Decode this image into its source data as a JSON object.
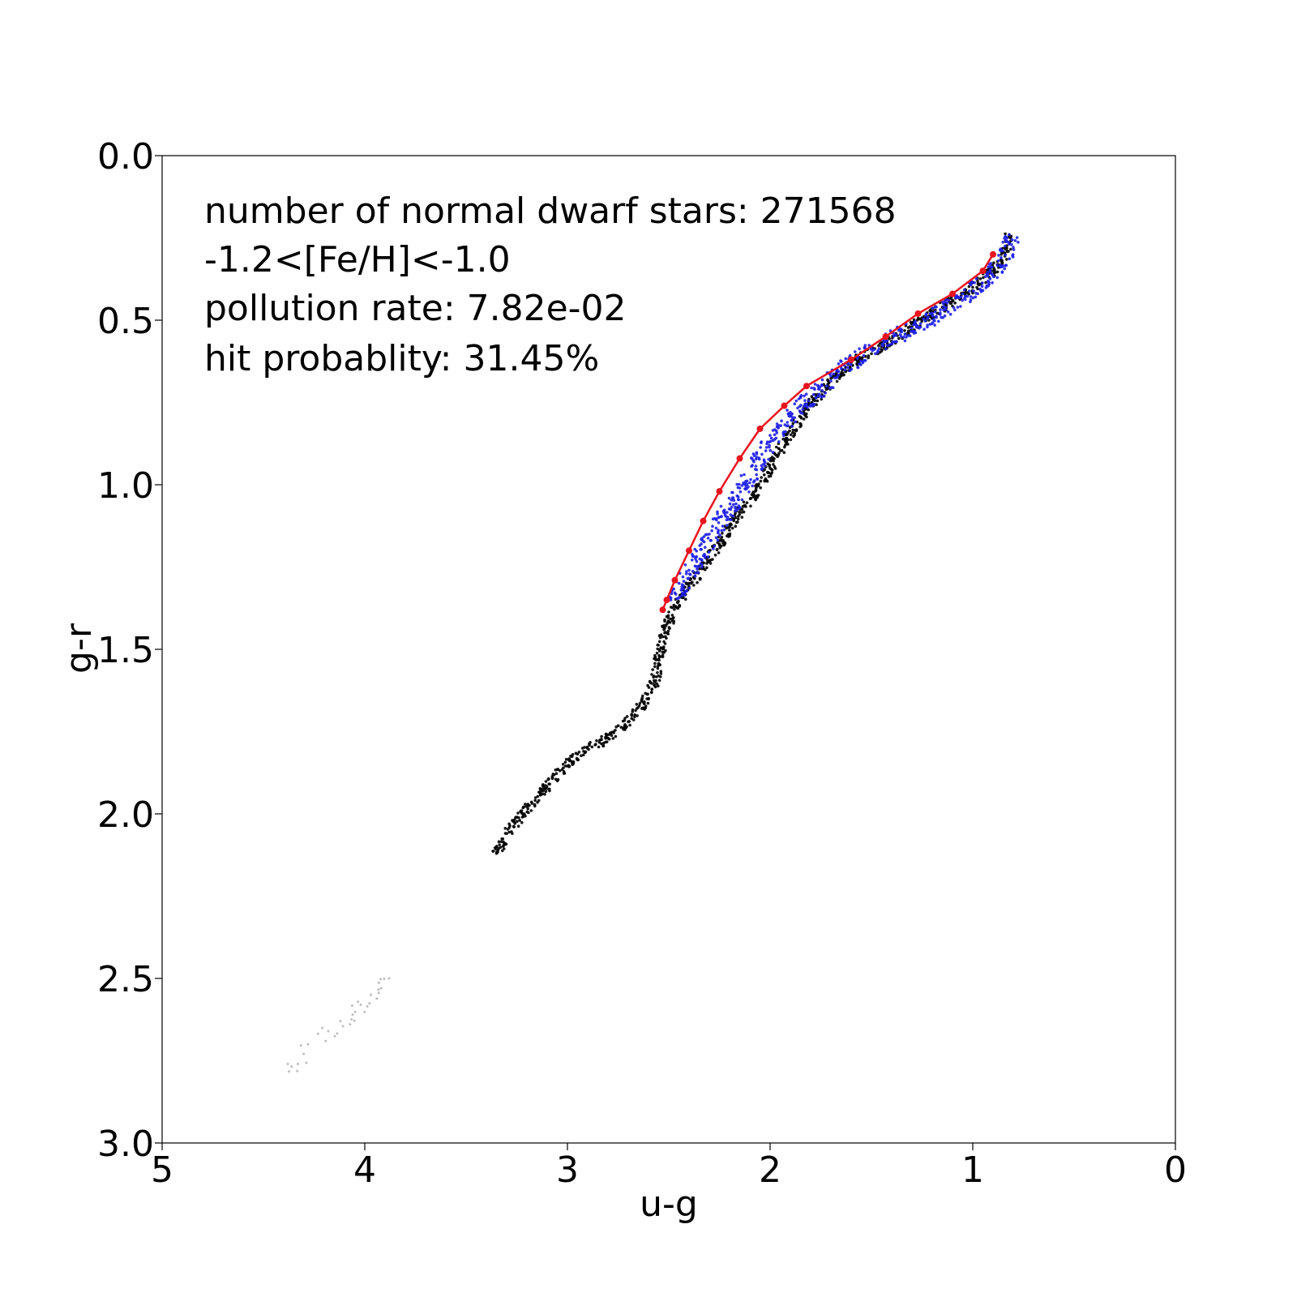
{
  "chart_data": {
    "type": "scatter",
    "xlabel": "u-g",
    "ylabel": "g-r",
    "xlim": [
      5,
      0
    ],
    "ylim": [
      3.0,
      0.0
    ],
    "x_inverted": true,
    "y_inverted": true,
    "xticks": [
      {
        "value": 5,
        "label": "5"
      },
      {
        "value": 4,
        "label": "4"
      },
      {
        "value": 3,
        "label": "3"
      },
      {
        "value": 2,
        "label": "2"
      },
      {
        "value": 1,
        "label": "1"
      },
      {
        "value": 0,
        "label": "0"
      }
    ],
    "yticks": [
      {
        "value": 0.0,
        "label": "0.0"
      },
      {
        "value": 0.5,
        "label": "0.5"
      },
      {
        "value": 1.0,
        "label": "1.0"
      },
      {
        "value": 1.5,
        "label": "1.5"
      },
      {
        "value": 2.0,
        "label": "2.0"
      },
      {
        "value": 2.5,
        "label": "2.5"
      },
      {
        "value": 3.0,
        "label": "3.0"
      }
    ],
    "annotations": [
      "number of normal dwarf stars: 271568",
      "-1.2<[Fe/H]<-1.0",
      "pollution rate: 7.82e-02",
      "hit probablity: 31.45%"
    ],
    "grid": false,
    "series": [
      {
        "color": "#000000",
        "style": "dense points",
        "points": [
          [
            0.82,
            0.24
          ],
          [
            0.84,
            0.3
          ],
          [
            0.9,
            0.35
          ],
          [
            1.0,
            0.4
          ],
          [
            1.15,
            0.46
          ],
          [
            1.3,
            0.52
          ],
          [
            1.45,
            0.58
          ],
          [
            1.6,
            0.63
          ],
          [
            1.72,
            0.7
          ],
          [
            1.82,
            0.77
          ],
          [
            1.92,
            0.86
          ],
          [
            2.0,
            0.95
          ],
          [
            2.08,
            1.03
          ],
          [
            2.17,
            1.1
          ],
          [
            2.25,
            1.18
          ],
          [
            2.33,
            1.25
          ],
          [
            2.4,
            1.31
          ],
          [
            2.47,
            1.37
          ],
          [
            2.52,
            1.45
          ],
          [
            2.55,
            1.53
          ],
          [
            2.57,
            1.6
          ],
          [
            2.62,
            1.66
          ],
          [
            2.7,
            1.72
          ],
          [
            2.8,
            1.77
          ],
          [
            2.92,
            1.81
          ],
          [
            3.02,
            1.86
          ],
          [
            3.12,
            1.93
          ],
          [
            3.22,
            2.0
          ],
          [
            3.3,
            2.06
          ],
          [
            3.35,
            2.12
          ]
        ]
      },
      {
        "color": "#1f1fe8",
        "style": "dense points",
        "points": [
          [
            0.82,
            0.24
          ],
          [
            0.86,
            0.31
          ],
          [
            0.93,
            0.36
          ],
          [
            1.05,
            0.42
          ],
          [
            1.2,
            0.48
          ],
          [
            1.35,
            0.53
          ],
          [
            1.5,
            0.58
          ],
          [
            1.65,
            0.64
          ],
          [
            1.78,
            0.71
          ],
          [
            1.9,
            0.78
          ],
          [
            2.0,
            0.85
          ],
          [
            2.08,
            0.93
          ],
          [
            2.15,
            1.01
          ],
          [
            2.23,
            1.08
          ],
          [
            2.3,
            1.15
          ],
          [
            2.37,
            1.22
          ],
          [
            2.43,
            1.28
          ],
          [
            2.49,
            1.35
          ]
        ]
      },
      {
        "color": "#888888",
        "style": "sparse points",
        "points": [
          [
            3.88,
            2.5
          ],
          [
            3.92,
            2.53
          ],
          [
            3.97,
            2.55
          ],
          [
            4.02,
            2.58
          ],
          [
            4.06,
            2.61
          ],
          [
            4.12,
            2.63
          ],
          [
            4.18,
            2.66
          ],
          [
            4.28,
            2.7
          ],
          [
            4.33,
            2.76
          ],
          [
            4.38,
            2.76
          ]
        ]
      },
      {
        "color": "#e8141e",
        "style": "line with markers",
        "points": [
          [
            0.9,
            0.3
          ],
          [
            0.95,
            0.35
          ],
          [
            1.1,
            0.42
          ],
          [
            1.27,
            0.48
          ],
          [
            1.43,
            0.55
          ],
          [
            1.6,
            0.62
          ],
          [
            1.82,
            0.7
          ],
          [
            1.93,
            0.76
          ],
          [
            2.05,
            0.83
          ],
          [
            2.15,
            0.92
          ],
          [
            2.25,
            1.02
          ],
          [
            2.33,
            1.11
          ],
          [
            2.4,
            1.2
          ],
          [
            2.47,
            1.29
          ],
          [
            2.51,
            1.35
          ],
          [
            2.53,
            1.38
          ]
        ]
      }
    ]
  }
}
